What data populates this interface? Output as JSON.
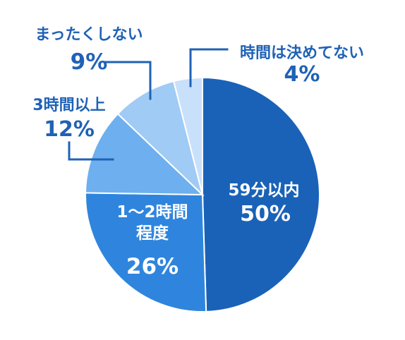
{
  "chart_data": {
    "type": "pie",
    "start_angle": "top",
    "direction": "clockwise",
    "slices": [
      {
        "label": "59分以内",
        "value": 50,
        "value_text": "50%",
        "color": "#1a62b8"
      },
      {
        "label_lines": [
          "1～2時間",
          "程度"
        ],
        "value": 26,
        "value_text": "26%",
        "color": "#2f85dd"
      },
      {
        "label": "3時間以上",
        "value": 12,
        "value_text": "12%",
        "color": "#6eb0ef"
      },
      {
        "label": "まったくしない",
        "value": 9,
        "value_text": "9%",
        "color": "#9fcbf5"
      },
      {
        "label": "時間は決めてない",
        "value": 4,
        "value_text": "4%",
        "color": "#c9e0fa"
      }
    ]
  },
  "colors": {
    "outside_label": "#1f62b6",
    "inside_label": "#ffffff"
  }
}
